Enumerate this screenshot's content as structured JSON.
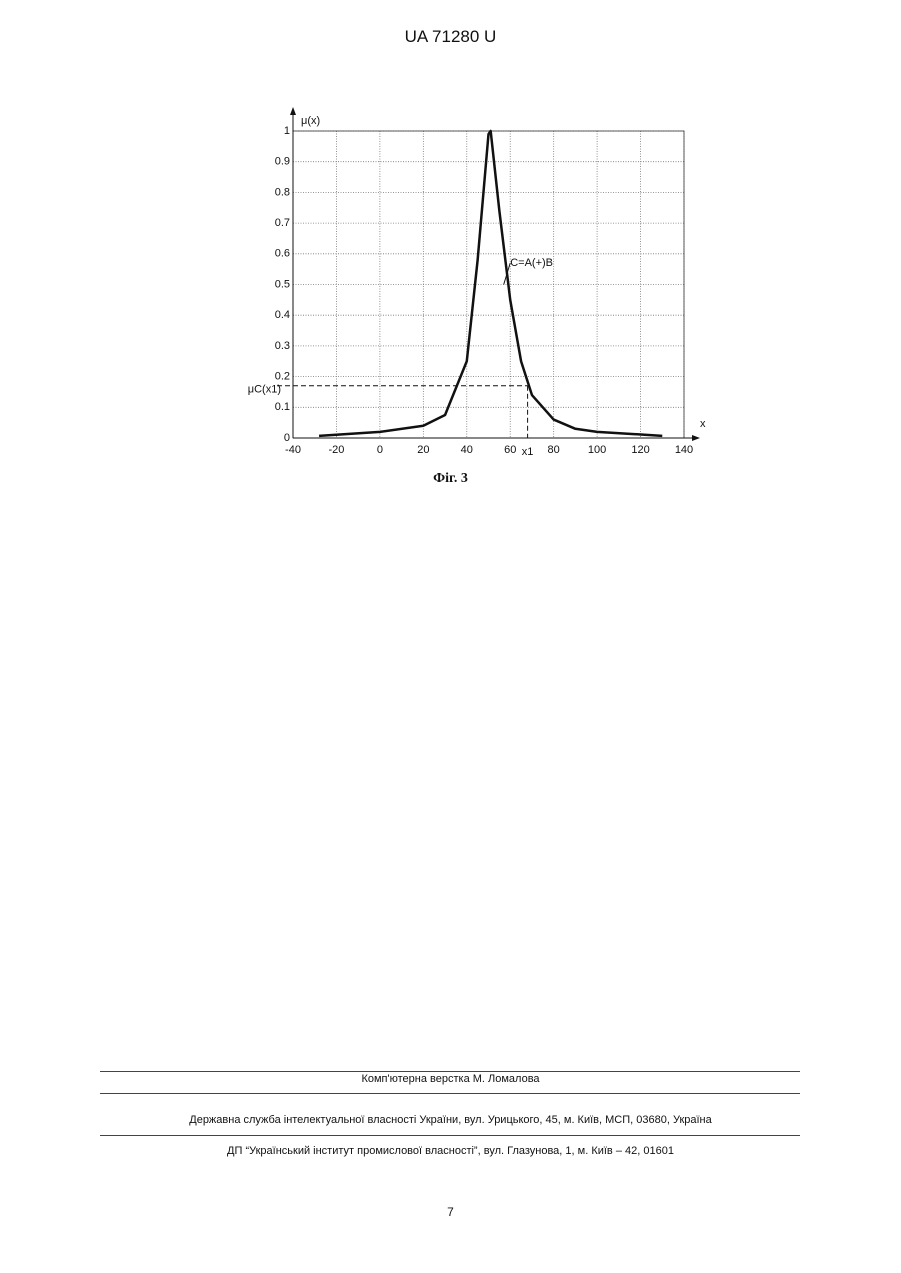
{
  "header": {
    "code": "UA   71280   U"
  },
  "chart_data": {
    "type": "line",
    "y_label": "μ(x)",
    "x_label": "x",
    "x": [
      -28,
      0,
      20,
      30,
      40,
      45,
      50,
      51,
      55,
      60,
      65,
      70,
      80,
      90,
      100,
      130
    ],
    "series": [
      {
        "name": "C=A(+)B",
        "color": "#111111",
        "values": [
          0.007,
          0.02,
          0.04,
          0.075,
          0.25,
          0.58,
          0.99,
          1,
          0.74,
          0.45,
          0.25,
          0.14,
          0.06,
          0.03,
          0.02,
          0.007
        ]
      }
    ],
    "xlim": [
      -40,
      140
    ],
    "ylim": [
      0,
      1
    ],
    "xticks": [
      -40,
      -20,
      0,
      20,
      40,
      60,
      80,
      100,
      120,
      140
    ],
    "yticks": [
      0,
      0.1,
      0.2,
      0.3,
      0.4,
      0.5,
      0.6,
      0.7,
      0.8,
      0.9,
      1
    ],
    "grid": true,
    "marker": {
      "x": 68,
      "y": 0.17,
      "x_text": "x1",
      "y_text": "μC(x1)"
    }
  },
  "caption": "Фіг. 3",
  "footer": {
    "layout": "Комп'ютерна верстка М. Ломалова",
    "office": "Державна служба інтелектуальної власності України, вул. Урицького, 45, м. Київ, МСП, 03680, Україна",
    "institute": "ДП “Український інститут промислової власності”, вул. Глазунова, 1, м. Київ – 42, 01601",
    "page": "7"
  }
}
